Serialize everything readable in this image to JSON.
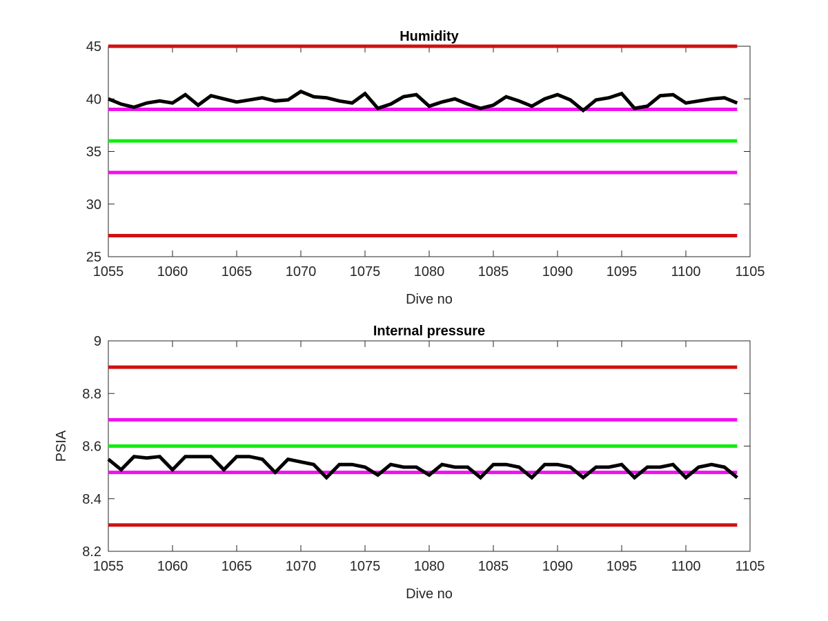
{
  "chart_data": [
    {
      "type": "line",
      "title": "Humidity",
      "xlabel": "Dive no",
      "ylabel": "",
      "xlim": [
        1055,
        1105
      ],
      "ylim": [
        25,
        45
      ],
      "xticks": [
        1055,
        1060,
        1065,
        1070,
        1075,
        1080,
        1085,
        1090,
        1095,
        1100,
        1105
      ],
      "yticks": [
        25,
        30,
        35,
        40,
        45
      ],
      "reference_lines": [
        {
          "y": 45,
          "color": "#d01010",
          "x": [
            1055,
            1104
          ]
        },
        {
          "y": 39,
          "color": "#ee10ee",
          "x": [
            1055,
            1104
          ]
        },
        {
          "y": 36,
          "color": "#10ee10",
          "x": [
            1055,
            1104
          ]
        },
        {
          "y": 33,
          "color": "#ee10ee",
          "x": [
            1055,
            1104
          ]
        },
        {
          "y": 27,
          "color": "#d01010",
          "x": [
            1055,
            1104
          ]
        }
      ],
      "series": [
        {
          "color": "#000000",
          "x": [
            1055,
            1056,
            1057,
            1058,
            1059,
            1060,
            1061,
            1062,
            1063,
            1064,
            1065,
            1066,
            1067,
            1068,
            1069,
            1070,
            1071,
            1072,
            1073,
            1074,
            1075,
            1076,
            1077,
            1078,
            1079,
            1080,
            1081,
            1082,
            1083,
            1084,
            1085,
            1086,
            1087,
            1088,
            1089,
            1090,
            1091,
            1092,
            1093,
            1094,
            1095,
            1096,
            1097,
            1098,
            1099,
            1100,
            1101,
            1102,
            1103,
            1104
          ],
          "values": [
            40.0,
            39.5,
            39.2,
            39.6,
            39.8,
            39.6,
            40.4,
            39.4,
            40.3,
            40.0,
            39.7,
            39.9,
            40.1,
            39.8,
            39.9,
            40.7,
            40.2,
            40.1,
            39.8,
            39.6,
            40.5,
            39.1,
            39.5,
            40.2,
            40.4,
            39.3,
            39.7,
            40.0,
            39.5,
            39.1,
            39.4,
            40.2,
            39.8,
            39.3,
            40.0,
            40.4,
            39.9,
            38.9,
            39.9,
            40.1,
            40.5,
            39.1,
            39.3,
            40.3,
            40.4,
            39.6,
            39.8,
            40.0,
            40.1,
            39.6
          ]
        }
      ]
    },
    {
      "type": "line",
      "title": "Internal pressure",
      "xlabel": "Dive no",
      "ylabel": "PSIA",
      "xlim": [
        1055,
        1105
      ],
      "ylim": [
        8.2,
        9.0
      ],
      "xticks": [
        1055,
        1060,
        1065,
        1070,
        1075,
        1080,
        1085,
        1090,
        1095,
        1100,
        1105
      ],
      "yticks": [
        8.2,
        8.4,
        8.6,
        8.8,
        9.0
      ],
      "ytick_labels": [
        "8.2",
        "8.4",
        "8.6",
        "8.8",
        "9"
      ],
      "reference_lines": [
        {
          "y": 8.9,
          "color": "#d01010",
          "x": [
            1055,
            1104
          ]
        },
        {
          "y": 8.7,
          "color": "#ee10ee",
          "x": [
            1055,
            1104
          ]
        },
        {
          "y": 8.6,
          "color": "#10ee10",
          "x": [
            1055,
            1104
          ]
        },
        {
          "y": 8.5,
          "color": "#ee10ee",
          "x": [
            1055,
            1104
          ]
        },
        {
          "y": 8.3,
          "color": "#d01010",
          "x": [
            1055,
            1104
          ]
        }
      ],
      "series": [
        {
          "color": "#000000",
          "x": [
            1055,
            1056,
            1057,
            1058,
            1059,
            1060,
            1061,
            1062,
            1063,
            1064,
            1065,
            1066,
            1067,
            1068,
            1069,
            1070,
            1071,
            1072,
            1073,
            1074,
            1075,
            1076,
            1077,
            1078,
            1079,
            1080,
            1081,
            1082,
            1083,
            1084,
            1085,
            1086,
            1087,
            1088,
            1089,
            1090,
            1091,
            1092,
            1093,
            1094,
            1095,
            1096,
            1097,
            1098,
            1099,
            1100,
            1101,
            1102,
            1103,
            1104
          ],
          "values": [
            8.55,
            8.51,
            8.56,
            8.555,
            8.56,
            8.51,
            8.56,
            8.56,
            8.56,
            8.51,
            8.56,
            8.56,
            8.55,
            8.5,
            8.55,
            8.54,
            8.53,
            8.48,
            8.53,
            8.53,
            8.52,
            8.49,
            8.53,
            8.52,
            8.52,
            8.49,
            8.53,
            8.52,
            8.52,
            8.48,
            8.53,
            8.53,
            8.52,
            8.48,
            8.53,
            8.53,
            8.52,
            8.48,
            8.52,
            8.52,
            8.53,
            8.48,
            8.52,
            8.52,
            8.53,
            8.48,
            8.52,
            8.53,
            8.52,
            8.48
          ]
        }
      ]
    }
  ]
}
